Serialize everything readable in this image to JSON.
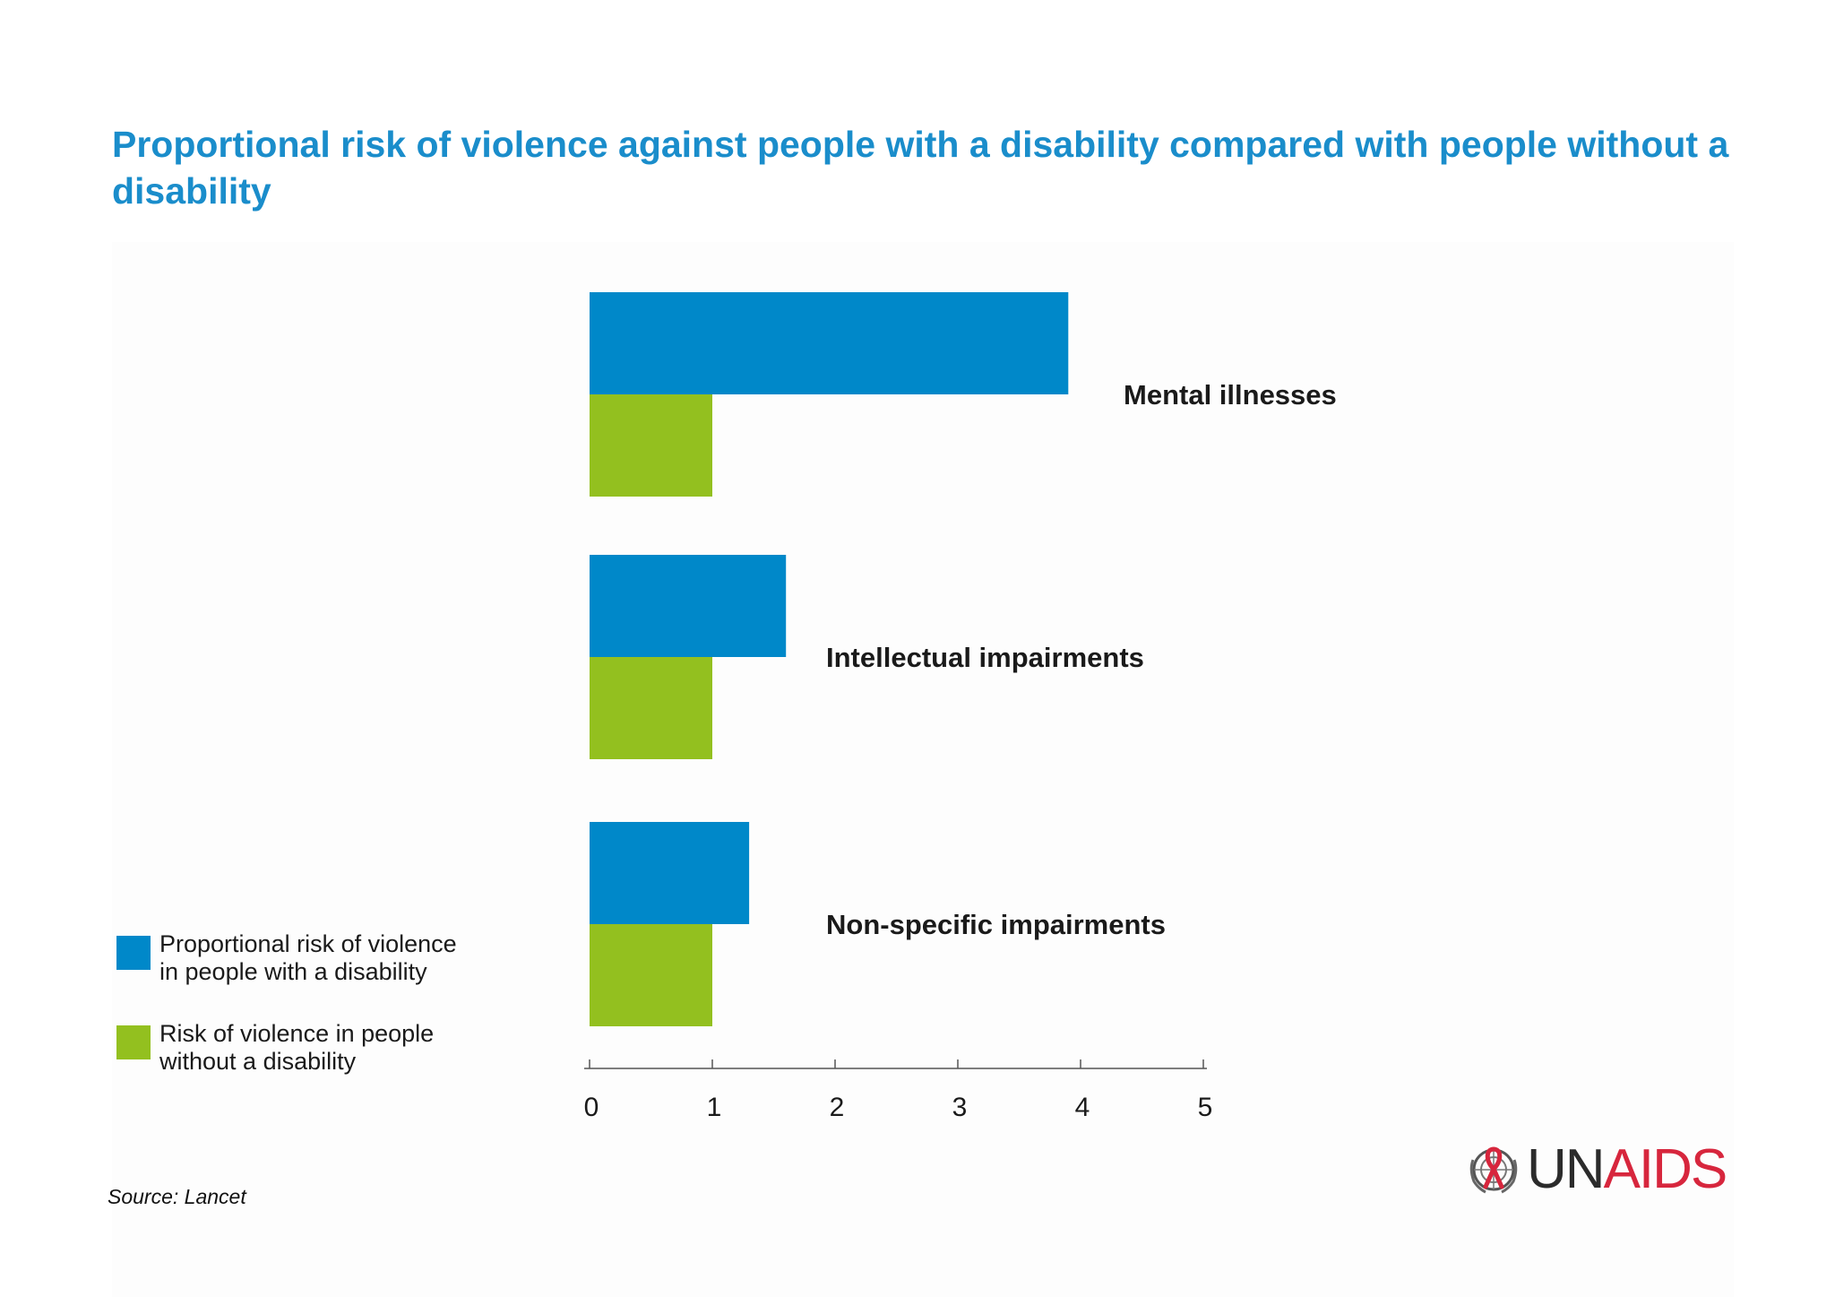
{
  "colors": {
    "with_disability": "#0088c9",
    "without_disability": "#93c01f",
    "title": "#1a8dcb",
    "logo_red": "#d7263d"
  },
  "chart_data": {
    "type": "bar",
    "orientation": "horizontal",
    "title": "Proportional risk of violence against people with a disability compared with people without a disability",
    "categories": [
      "Mental illnesses",
      "Intellectual impairments",
      "Non-specific impairments"
    ],
    "series": [
      {
        "name": "Proportional risk of violence in people with a disability",
        "values": [
          3.9,
          1.6,
          1.3
        ]
      },
      {
        "name": "Risk of violence in people without a disability",
        "values": [
          1.0,
          1.0,
          1.0
        ]
      }
    ],
    "xlim": [
      0,
      5
    ],
    "xticks": [
      "0",
      "1",
      "2",
      "3",
      "4",
      "5"
    ],
    "xlabel": "",
    "ylabel": "",
    "grid": false,
    "legend_position": "bottom-left"
  },
  "legend": {
    "disability": "Proportional risk of violence in people with a disability",
    "without": "Risk of violence in people without a disability"
  },
  "source": "Source: Lancet",
  "logo": {
    "un": "UN",
    "aids": "AIDS"
  }
}
